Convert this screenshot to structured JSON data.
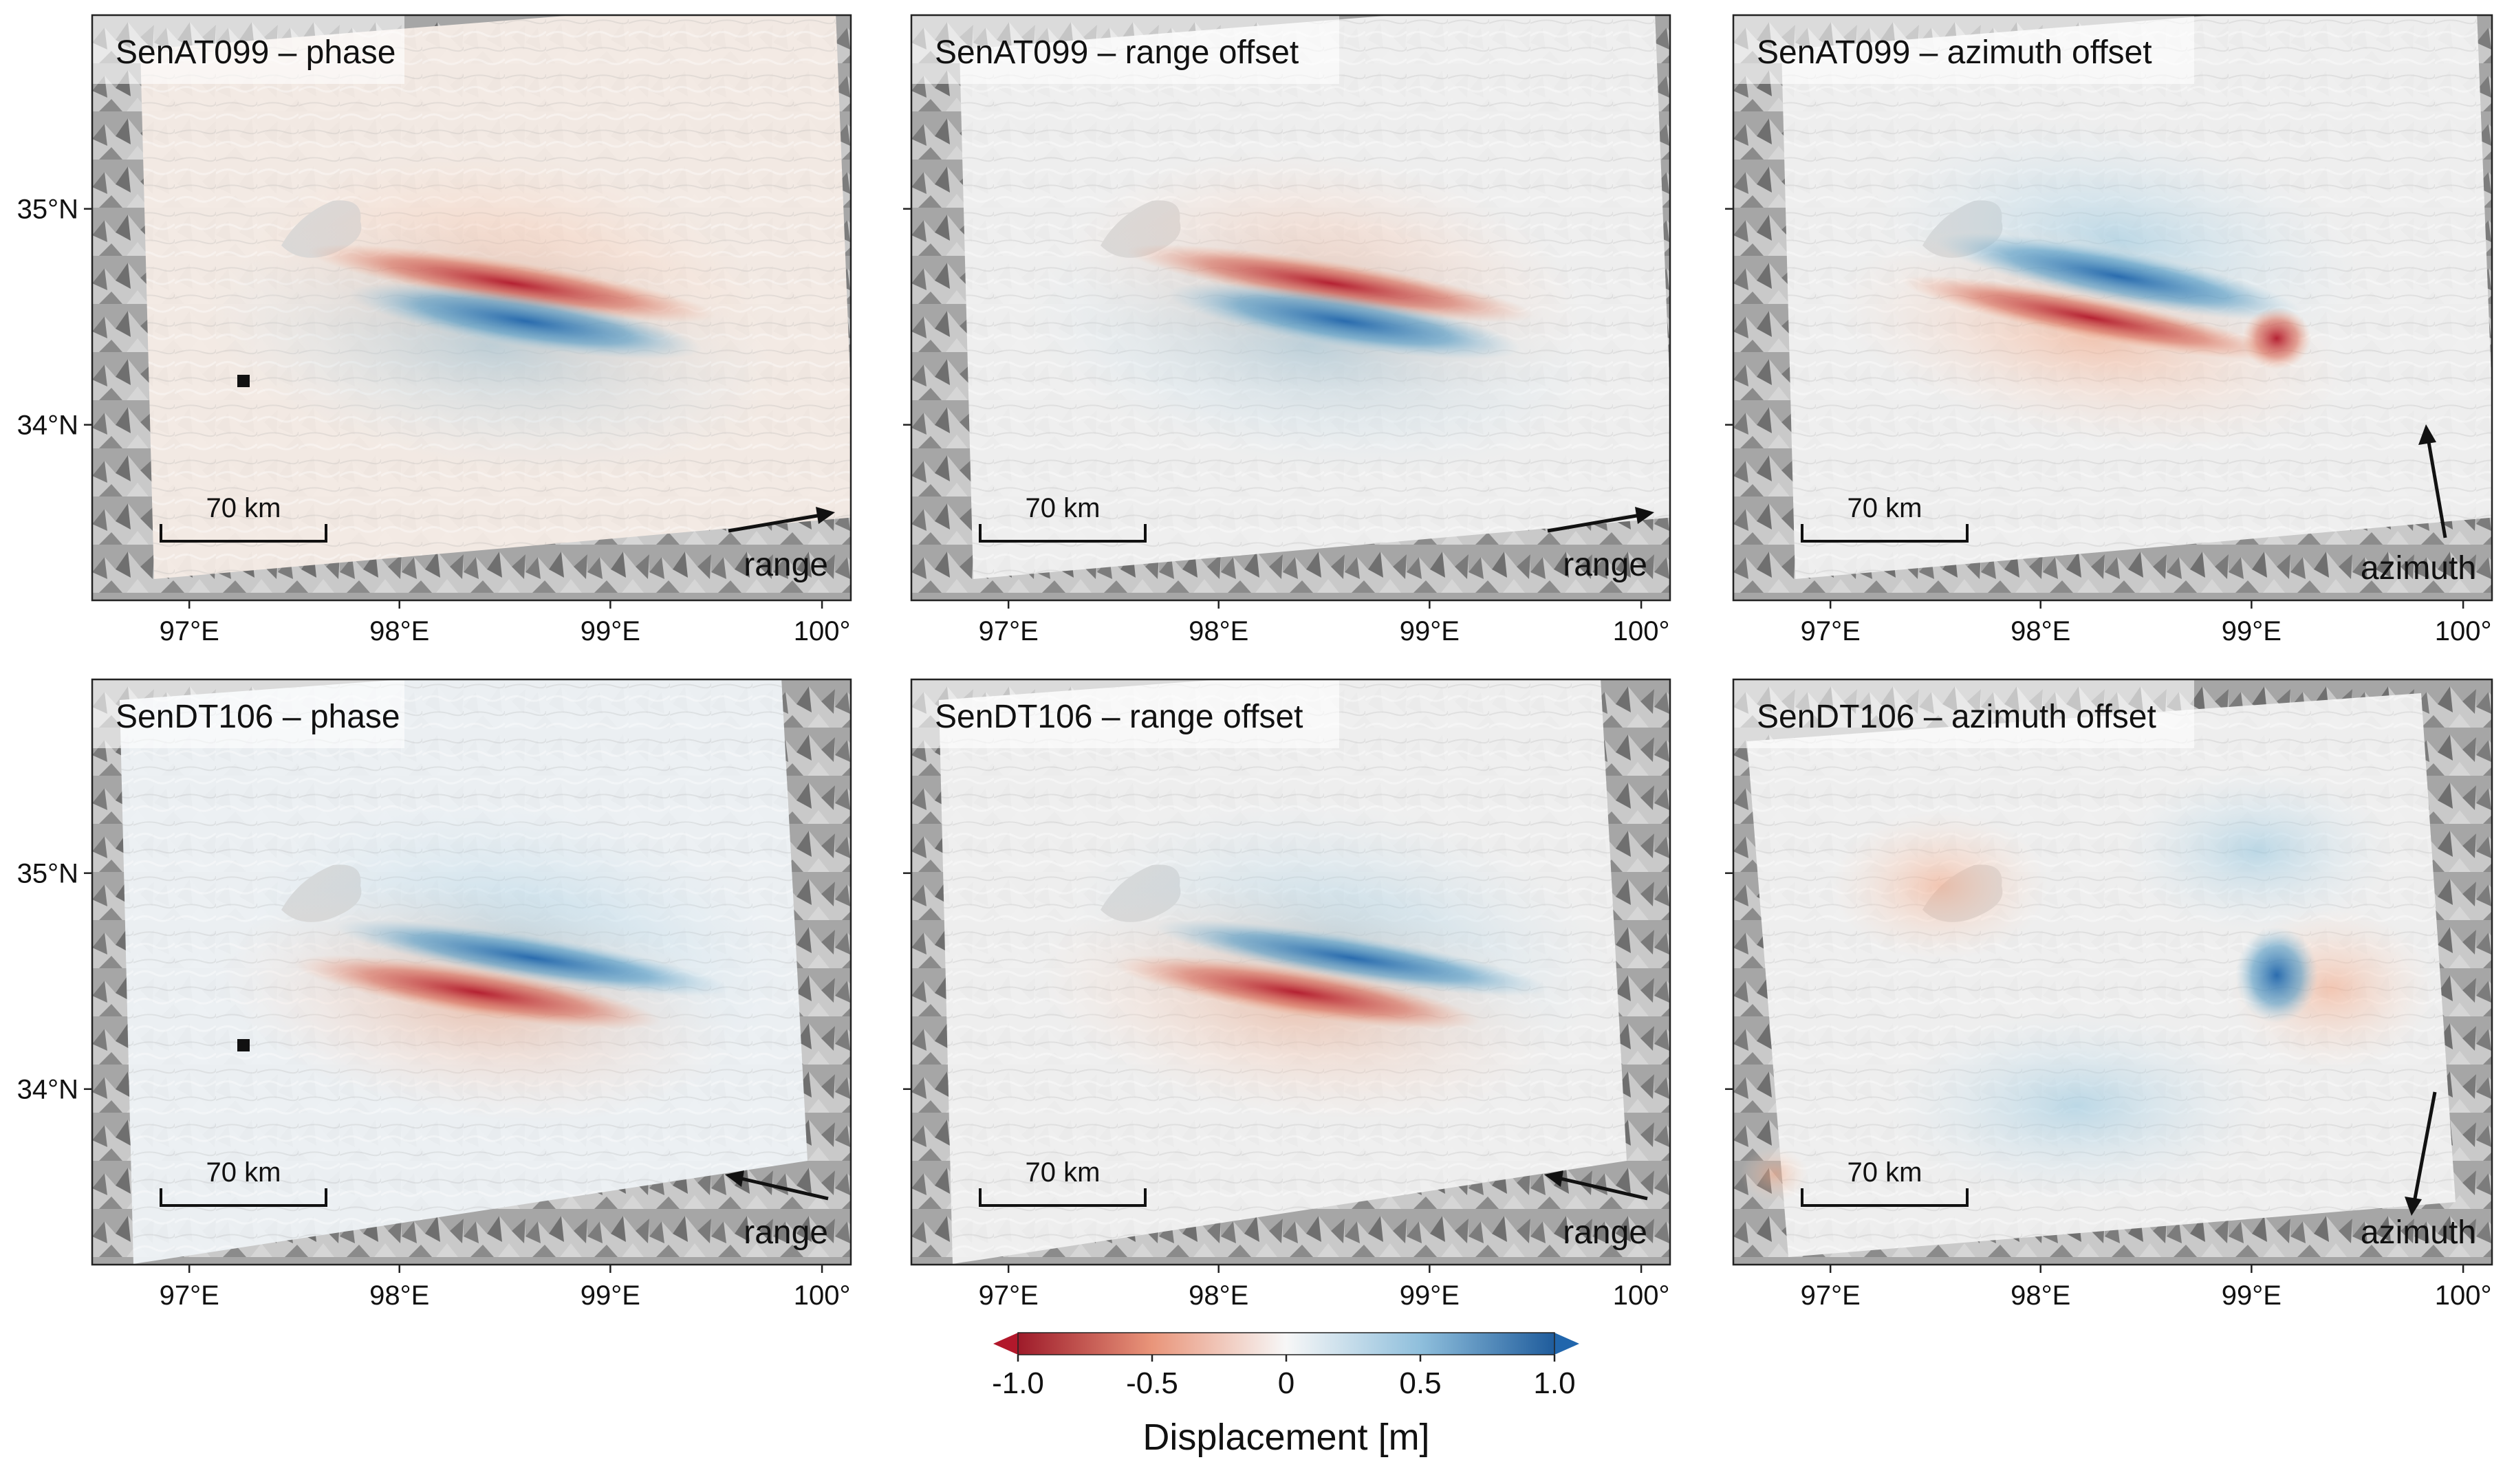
{
  "panels": [
    {
      "title": "SenAT099 – phase",
      "scale_bar_label": "70 km",
      "arrow_label": "range",
      "arrow_dir": "east-up",
      "reference_point": true,
      "pattern": "phase_asc"
    },
    {
      "title": "SenAT099 – range offset",
      "scale_bar_label": "70 km",
      "arrow_label": "range",
      "arrow_dir": "east-up",
      "reference_point": false,
      "pattern": "range_asc"
    },
    {
      "title": "SenAT099 – azimuth offset",
      "scale_bar_label": "70 km",
      "arrow_label": "azimuth",
      "arrow_dir": "north",
      "reference_point": false,
      "pattern": "azimuth_asc"
    },
    {
      "title": "SenDT106 – phase",
      "scale_bar_label": "70 km",
      "arrow_label": "range",
      "arrow_dir": "west-up",
      "reference_point": true,
      "pattern": "phase_desc"
    },
    {
      "title": "SenDT106 – range offset",
      "scale_bar_label": "70 km",
      "arrow_label": "range",
      "arrow_dir": "west-up",
      "reference_point": false,
      "pattern": "range_desc"
    },
    {
      "title": "SenDT106 – azimuth offset",
      "scale_bar_label": "70 km",
      "arrow_label": "azimuth",
      "arrow_dir": "south",
      "reference_point": false,
      "pattern": "azimuth_desc"
    }
  ],
  "axes": {
    "x_ticks": [
      "97°E",
      "98°E",
      "99°E",
      "100°"
    ],
    "y_ticks": [
      "35°N",
      "34°N"
    ]
  },
  "colorbar": {
    "label": "Displacement [m]",
    "ticks": [
      "-1.0",
      "-0.5",
      "0",
      "0.5",
      "1.0"
    ],
    "range": [
      -1.0,
      1.0
    ],
    "colormap": "RdBu",
    "colors": {
      "neg": "#b2182b",
      "mid": "#f7f7f7",
      "pos": "#2166ac"
    },
    "extend": "both"
  },
  "colors": {
    "hillshade": "#9a9a9a",
    "lake": "#d8d8d8",
    "text": "#111111"
  }
}
